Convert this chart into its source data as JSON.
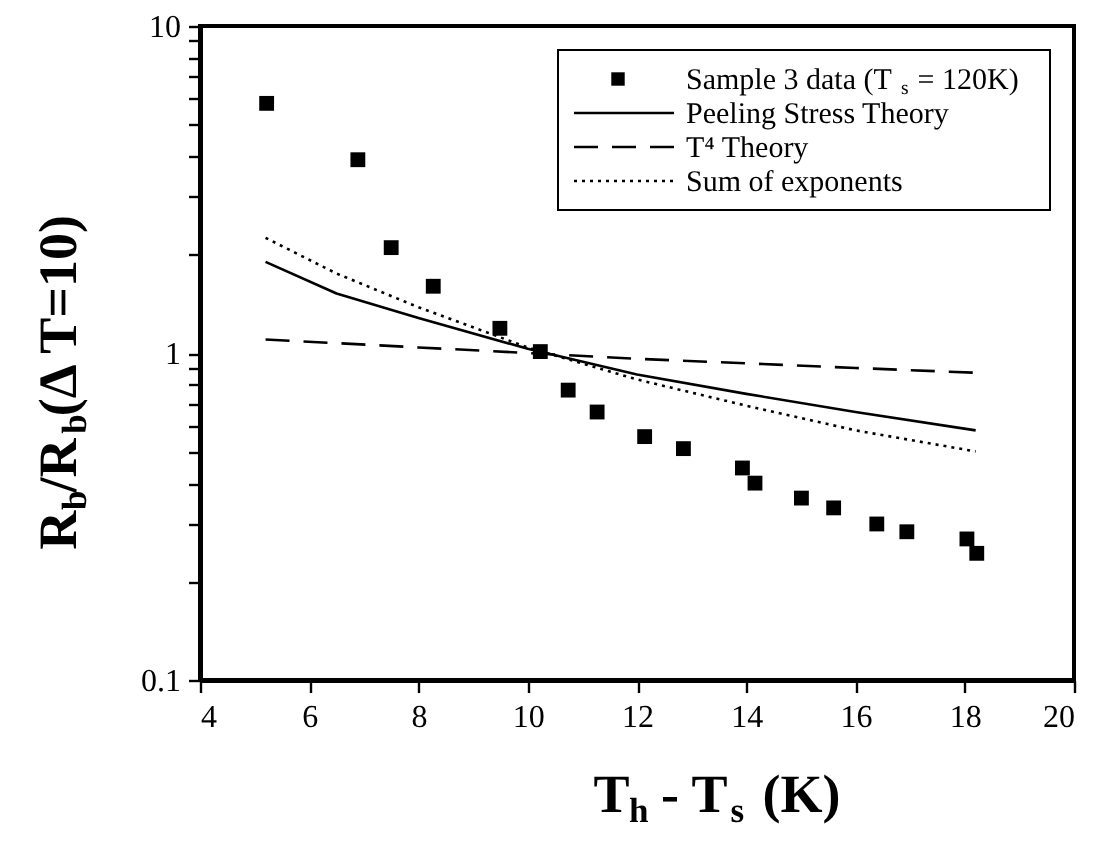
{
  "chart_data": {
    "type": "scatter",
    "xlabel": "T$_{h}$ - T$_{s}$ (K)",
    "ylabel": "R$_{b}$/R$_{b}$(Δ T=10)",
    "log": "y",
    "xlim": [
      4,
      20
    ],
    "xticks": [
      4,
      6,
      8,
      10,
      12,
      14,
      16,
      18,
      20
    ],
    "ylim": [
      0.1,
      10
    ],
    "yticks": [
      0.1,
      {
        "value": 0.2,
        "label": null
      },
      {
        "value": 0.3,
        "label": null
      },
      {
        "value": 0.4,
        "label": null
      },
      {
        "value": 0.5,
        "label": null
      },
      {
        "value": 0.6,
        "label": null
      },
      {
        "value": 0.7,
        "label": null
      },
      {
        "value": 0.8,
        "label": null
      },
      {
        "value": 0.9,
        "label": null
      },
      1,
      {
        "value": 2,
        "label": null
      },
      {
        "value": 3,
        "label": null
      },
      {
        "value": 4,
        "label": null
      },
      {
        "value": 5,
        "label": null
      },
      {
        "value": 6,
        "label": null
      },
      {
        "value": 7,
        "label": null
      },
      {
        "value": 8,
        "label": null
      },
      {
        "value": 9,
        "label": null
      },
      10
    ],
    "grid": false,
    "legend": "top right",
    "series": [
      {
        "name": "Sample 3 data (T$_{s}$ = 120K)",
        "type": "scatter",
        "marker": "square",
        "color": "#000000",
        "x": [
          5.22,
          6.89,
          7.5,
          8.27,
          9.49,
          10.23,
          10.74,
          11.27,
          12.14,
          12.85,
          13.93,
          14.16,
          15.01,
          15.6,
          16.39,
          16.94,
          18.04,
          18.22
        ],
        "values": [
          5.8,
          3.9,
          2.1,
          1.6,
          1.19,
          1.01,
          0.77,
          0.66,
          0.555,
          0.51,
          0.445,
          0.4,
          0.36,
          0.336,
          0.3,
          0.284,
          0.27,
          0.244
        ]
      },
      {
        "name": "Peeling Stress Theory",
        "type": "line",
        "line_style": "solid",
        "color": "#000000",
        "x": [
          5.2,
          6.5,
          8,
          10,
          12,
          14,
          16,
          18.2
        ],
        "values": [
          1.9,
          1.52,
          1.28,
          1.03,
          0.86,
          0.75,
          0.66,
          0.58
        ]
      },
      {
        "name": "T⁴ Theory",
        "type": "line",
        "line_style": "dashed",
        "color": "#000000",
        "x": [
          5.2,
          8,
          10,
          12,
          14,
          16,
          18.2
        ],
        "values": [
          1.1,
          1.04,
          1.0,
          0.96,
          0.93,
          0.9,
          0.87
        ]
      },
      {
        "name": "Sum of exponents",
        "type": "line",
        "line_style": "dotted",
        "color": "#000000",
        "x": [
          5.2,
          6.5,
          8,
          10,
          12,
          14,
          16,
          18.2
        ],
        "values": [
          2.25,
          1.75,
          1.38,
          1.04,
          0.83,
          0.69,
          0.58,
          0.5
        ]
      }
    ]
  }
}
